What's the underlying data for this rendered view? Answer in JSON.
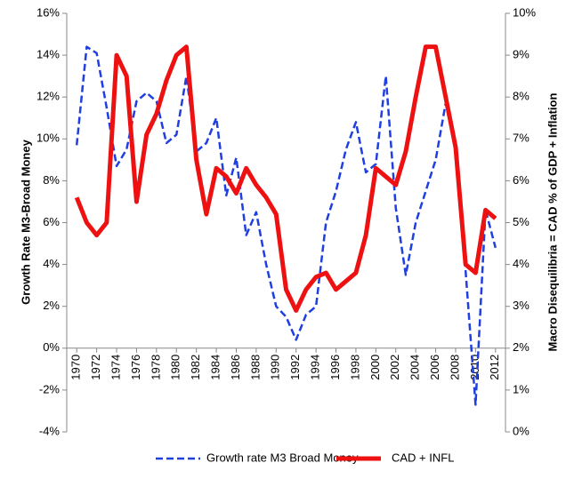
{
  "chart_data": {
    "type": "line",
    "x": [
      1970,
      1971,
      1972,
      1973,
      1974,
      1975,
      1976,
      1977,
      1978,
      1979,
      1980,
      1981,
      1982,
      1983,
      1984,
      1985,
      1986,
      1987,
      1988,
      1989,
      1990,
      1991,
      1992,
      1993,
      1994,
      1995,
      1996,
      1997,
      1998,
      1999,
      2000,
      2001,
      2002,
      2003,
      2004,
      2005,
      2006,
      2007,
      2008,
      2009,
      2010,
      2011,
      2012
    ],
    "xlim": [
      1969,
      2013
    ],
    "xticks": [
      1970,
      1972,
      1974,
      1976,
      1978,
      1980,
      1982,
      1984,
      1986,
      1988,
      1990,
      1992,
      1994,
      1996,
      1998,
      2000,
      2002,
      2004,
      2006,
      2008,
      2010,
      2012
    ],
    "y_label": "Growth Rate M3-Broad Money",
    "y2_label": "Macro Disequilibria = CAD % of GDP + Inflation",
    "ylim": [
      -4,
      16
    ],
    "yticks": [
      {
        "value": -4,
        "label": "-4%"
      },
      {
        "value": -2,
        "label": "-2%"
      },
      {
        "value": 0,
        "label": "0%"
      },
      {
        "value": 2,
        "label": "2%"
      },
      {
        "value": 4,
        "label": "4%"
      },
      {
        "value": 6,
        "label": "6%"
      },
      {
        "value": 8,
        "label": "8%"
      },
      {
        "value": 10,
        "label": "10%"
      },
      {
        "value": 12,
        "label": "12%"
      },
      {
        "value": 14,
        "label": "14%"
      },
      {
        "value": 16,
        "label": "16%"
      }
    ],
    "y2lim": [
      0,
      10
    ],
    "y2ticks": [
      {
        "value": 0,
        "label": "0%"
      },
      {
        "value": 1,
        "label": "1%"
      },
      {
        "value": 2,
        "label": "2%"
      },
      {
        "value": 3,
        "label": "3%"
      },
      {
        "value": 4,
        "label": "4%"
      },
      {
        "value": 5,
        "label": "5%"
      },
      {
        "value": 6,
        "label": "6%"
      },
      {
        "value": 7,
        "label": "7%"
      },
      {
        "value": 8,
        "label": "8%"
      },
      {
        "value": 9,
        "label": "9%"
      },
      {
        "value": 10,
        "label": "10%"
      }
    ],
    "grid": false,
    "legend": "bottom",
    "series": [
      {
        "name": "Growth rate M3 Broad Money",
        "color": "#1f3fe0",
        "dashed": true,
        "axis": "y",
        "values": [
          9.7,
          14.4,
          14.1,
          11.5,
          8.7,
          9.5,
          11.8,
          12.2,
          11.8,
          9.8,
          10.2,
          13.0,
          9.4,
          9.8,
          11.0,
          7.3,
          9.1,
          5.4,
          6.5,
          4.0,
          2.0,
          1.5,
          0.4,
          1.6,
          2.0,
          6.0,
          7.5,
          9.5,
          10.8,
          8.4,
          8.8,
          13.0,
          6.7,
          3.5,
          6.0,
          7.5,
          9.0,
          11.7,
          9.5,
          3.7,
          -2.7,
          6.6,
          4.8
        ]
      },
      {
        "name": "CAD + INFL",
        "color": "#ee1111",
        "dashed": false,
        "axis": "y2",
        "values": [
          5.6,
          5.0,
          4.7,
          5.0,
          9.0,
          8.5,
          5.5,
          7.1,
          7.6,
          8.4,
          9.0,
          9.2,
          6.5,
          5.2,
          6.3,
          6.1,
          5.7,
          6.3,
          5.9,
          5.6,
          5.2,
          3.4,
          2.9,
          3.4,
          3.7,
          3.8,
          3.4,
          3.6,
          3.8,
          4.7,
          6.3,
          6.1,
          5.9,
          6.7,
          8.0,
          9.2,
          9.2,
          8.0,
          6.8,
          4.0,
          3.8,
          5.3,
          5.1
        ]
      }
    ]
  }
}
